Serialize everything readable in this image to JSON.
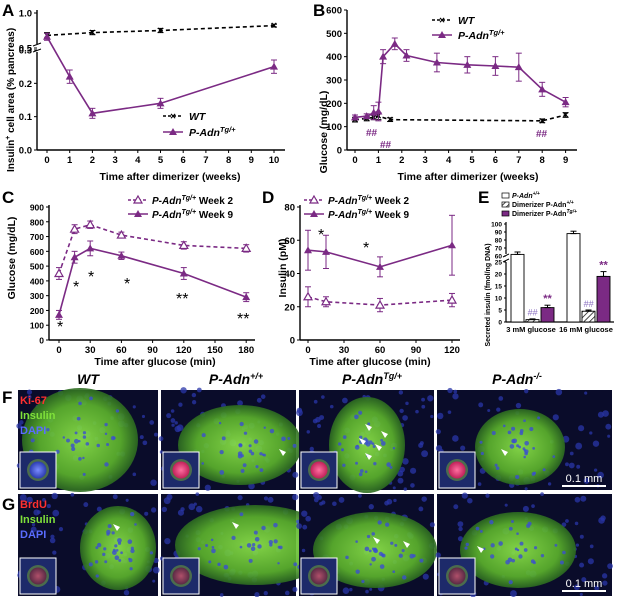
{
  "panels": {
    "A": {
      "letter": "A",
      "type": "line",
      "xlabel": "Time after dimerizer (weeks)",
      "ylabel_parts": [
        "Insulin",
        "+",
        " cell area (% pancreas)"
      ],
      "xticks": [
        0,
        1,
        2,
        3,
        4,
        5,
        6,
        7,
        8,
        9,
        10
      ],
      "yticks_lower": [
        "0.0",
        "0.1",
        "0.2",
        "0.3"
      ],
      "yticks_upper": [
        "0.5",
        "1.0"
      ],
      "legend": [
        {
          "label": "WT",
          "style": "dashed-x"
        },
        {
          "label_main": "P-Adn",
          "label_sup": "Tg/+",
          "style": "solid-triangle"
        }
      ],
      "series": [
        {
          "key": "wt",
          "x": [
            0,
            2,
            5,
            10
          ],
          "y": [
            0.68,
            0.72,
            0.75,
            0.82
          ],
          "err": [
            0.04,
            0.03,
            0.03,
            0.02
          ]
        },
        {
          "key": "tg",
          "x": [
            0,
            1,
            2,
            5,
            10
          ],
          "y": [
            0.66,
            0.22,
            0.11,
            0.14,
            0.25
          ],
          "err": [
            0.05,
            0.02,
            0.015,
            0.015,
            0.02
          ]
        }
      ]
    },
    "B": {
      "letter": "B",
      "type": "line",
      "xlabel": "Time after dimerizer (weeks)",
      "ylabel": "Glucose (mg/dL)",
      "xticks": [
        0,
        1,
        2,
        3,
        4,
        5,
        6,
        7,
        8,
        9
      ],
      "yticks": [
        0,
        100,
        200,
        300,
        400,
        500,
        600
      ],
      "legend": [
        {
          "label": "WT",
          "style": "dashed-x"
        },
        {
          "label_main": "P-Adn",
          "label_sup": "Tg/+",
          "style": "solid-triangle"
        }
      ],
      "annotations": [
        "##",
        "##",
        "##"
      ],
      "series": [
        {
          "key": "wt",
          "x": [
            0,
            0.5,
            0.8,
            1.0,
            1.5,
            8,
            9
          ],
          "y": [
            130,
            135,
            140,
            145,
            130,
            125,
            150
          ],
          "err": [
            10,
            10,
            10,
            15,
            8,
            8,
            10
          ]
        },
        {
          "key": "tg",
          "x": [
            0,
            0.5,
            0.8,
            1.0,
            1.2,
            1.7,
            2.2,
            3.5,
            4.8,
            6,
            7,
            8,
            9
          ],
          "y": [
            140,
            145,
            160,
            165,
            400,
            455,
            405,
            375,
            365,
            360,
            355,
            260,
            205
          ],
          "err": [
            10,
            10,
            30,
            40,
            30,
            25,
            25,
            40,
            35,
            40,
            60,
            30,
            20
          ]
        }
      ]
    },
    "C": {
      "letter": "C",
      "type": "line",
      "xlabel": "Time after glucose (min)",
      "ylabel": "Glucose (mg/dL)",
      "xticks": [
        0,
        30,
        60,
        90,
        120,
        150,
        180
      ],
      "yticks": [
        0,
        100,
        200,
        300,
        400,
        500,
        600,
        700,
        800,
        900
      ],
      "legend": [
        {
          "label_main": "P-Adn",
          "label_sup": "Tg/+",
          "label_tail": " Week 2",
          "style": "dashed-open-triangle"
        },
        {
          "label_main": "P-Adn",
          "label_sup": "Tg/+",
          "label_tail": " Week 9",
          "style": "solid-triangle"
        }
      ],
      "stars": [
        "*",
        "*",
        "*",
        "*",
        "**",
        "**"
      ],
      "series": [
        {
          "key": "wk2",
          "x": [
            0,
            15,
            30,
            60,
            120,
            180
          ],
          "y": [
            450,
            750,
            780,
            710,
            640,
            620
          ],
          "err": [
            40,
            30,
            25,
            20,
            25,
            25
          ]
        },
        {
          "key": "wk9",
          "x": [
            0,
            15,
            30,
            60,
            120,
            180
          ],
          "y": [
            170,
            560,
            620,
            570,
            450,
            290
          ],
          "err": [
            30,
            40,
            50,
            25,
            40,
            30
          ]
        }
      ]
    },
    "D": {
      "letter": "D",
      "type": "line",
      "xlabel": "Time after glucose (min)",
      "ylabel": "Insulin (pM)",
      "xticks": [
        0,
        30,
        60,
        90,
        120
      ],
      "yticks": [
        0,
        20,
        40,
        60,
        80
      ],
      "legend": [
        {
          "label_main": "P-Adn",
          "label_sup": "Tg/+",
          "label_tail": " Week 2",
          "style": "dashed-open-triangle"
        },
        {
          "label_main": "P-Adn",
          "label_sup": "Tg/+",
          "label_tail": " Week 9",
          "style": "solid-triangle"
        }
      ],
      "stars": [
        "*",
        "*"
      ],
      "series": [
        {
          "key": "wk2",
          "x": [
            0,
            15,
            60,
            120
          ],
          "y": [
            26,
            23,
            21,
            24
          ],
          "err": [
            6,
            3,
            4,
            4
          ]
        },
        {
          "key": "wk9",
          "x": [
            0,
            15,
            60,
            120
          ],
          "y": [
            54,
            53,
            44,
            57
          ],
          "err": [
            12,
            10,
            6,
            18
          ]
        }
      ]
    },
    "E": {
      "letter": "E",
      "type": "bar",
      "ylabel": "Secreted insulin (fmol/ng DNA)",
      "categories": [
        "3 mM glucose",
        "16 mM glucose"
      ],
      "yticks_lower": [
        0,
        5,
        10,
        15,
        20,
        25
      ],
      "yticks_upper": [
        60,
        70,
        80,
        90,
        100
      ],
      "legend": [
        {
          "label_main": "P-Adn",
          "label_sup": "+/+",
          "style": "open"
        },
        {
          "label_main": "Dimerizer P-Adn",
          "label_sup": "+/+",
          "style": "hatched"
        },
        {
          "label_main": "Dimerizer P-Adn",
          "label_sup": "Tg/+",
          "style": "filled"
        }
      ],
      "marks": {
        "hash": "##",
        "star": "**"
      },
      "values": [
        [
          62,
          1,
          6
        ],
        [
          88,
          4.5,
          19
        ]
      ],
      "err": [
        [
          3,
          0.3,
          1
        ],
        [
          3,
          0.5,
          2
        ]
      ]
    },
    "F": {
      "letter": "F",
      "stains": [
        "Ki-67",
        "Insulin",
        "DAPI"
      ],
      "columns": [
        {
          "main": "WT",
          "sup": ""
        },
        {
          "main": "P-Adn",
          "sup": "+/+"
        },
        {
          "main": "P-Adn",
          "sup": "Tg/+"
        },
        {
          "main": "P-Adn",
          "sup": "-/-"
        }
      ],
      "scalebar": "0.1 mm"
    },
    "G": {
      "letter": "G",
      "stains": [
        "BrdU",
        "Insulin",
        "DAPI"
      ],
      "scalebar": "0.1 mm"
    }
  },
  "colors": {
    "purple": "#7b2a84",
    "wt": "#000000",
    "stain_red": "#ff2a2a",
    "stain_green": "#7fe03a",
    "stain_blue": "#4a5cff",
    "tissue_bg": "#0a0c2a"
  }
}
